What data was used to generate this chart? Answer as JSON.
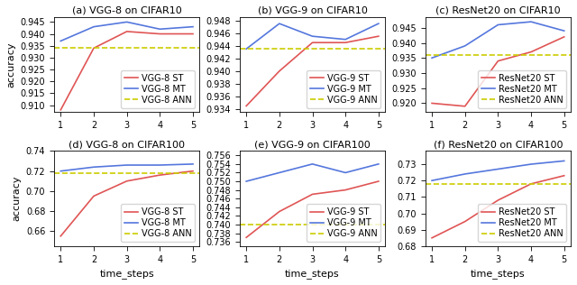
{
  "subplots": [
    {
      "title": "(a) VGG-8 on CIFAR10",
      "st": [
        0.908,
        0.934,
        0.941,
        0.94,
        0.94
      ],
      "mt": [
        0.937,
        0.943,
        0.945,
        0.942,
        0.943
      ],
      "ann": 0.934,
      "ylim": [
        0.907,
        0.947
      ],
      "yticks": [
        0.91,
        0.915,
        0.92,
        0.925,
        0.93,
        0.935,
        0.94,
        0.945
      ],
      "ylabel": "accuracy",
      "legend": [
        "VGG-8 ST",
        "VGG-8 MT",
        "VGG-8 ANN"
      ]
    },
    {
      "title": "(b) VGG-9 on CIFAR10",
      "st": [
        0.9345,
        0.94,
        0.9445,
        0.9445,
        0.9455
      ],
      "mt": [
        0.9435,
        0.9475,
        0.9455,
        0.945,
        0.9475
      ],
      "ann": 0.9435,
      "ylim": [
        0.9335,
        0.9485
      ],
      "yticks": [
        0.934,
        0.936,
        0.938,
        0.94,
        0.942,
        0.944,
        0.946,
        0.948
      ],
      "ylabel": "",
      "legend": [
        "VGG-9 ST",
        "VGG-9 MT",
        "VGG-9 ANN"
      ]
    },
    {
      "title": "(c) ResNet20 on CIFAR10",
      "st": [
        0.92,
        0.919,
        0.934,
        0.937,
        0.942
      ],
      "mt": [
        0.935,
        0.939,
        0.946,
        0.947,
        0.944
      ],
      "ann": 0.936,
      "ylim": [
        0.917,
        0.9485
      ],
      "yticks": [
        0.92,
        0.925,
        0.93,
        0.935,
        0.94,
        0.945
      ],
      "ylabel": "",
      "legend": [
        "ResNet20 ST",
        "ResNet20 MT",
        "ResNet20 ANN"
      ]
    },
    {
      "title": "(d) VGG-8 on CIFAR100",
      "st": [
        0.655,
        0.695,
        0.71,
        0.716,
        0.72
      ],
      "mt": [
        0.72,
        0.724,
        0.726,
        0.726,
        0.727
      ],
      "ann": 0.718,
      "ylim": [
        0.645,
        0.74
      ],
      "yticks": [
        0.66,
        0.68,
        0.7,
        0.72,
        0.74
      ],
      "ylabel": "accuracy",
      "legend": [
        "VGG-8 ST",
        "VGG-8 MT",
        "VGG-8 ANN"
      ]
    },
    {
      "title": "(e) VGG-9 on CIFAR100",
      "st": [
        0.737,
        0.743,
        0.747,
        0.748,
        0.75
      ],
      "mt": [
        0.75,
        0.752,
        0.754,
        0.752,
        0.754
      ],
      "ann": 0.74,
      "ylim": [
        0.735,
        0.757
      ],
      "yticks": [
        0.736,
        0.738,
        0.74,
        0.742,
        0.744,
        0.746,
        0.748,
        0.75,
        0.752,
        0.754,
        0.756
      ],
      "ylabel": "",
      "legend": [
        "VGG-9 ST",
        "VGG-9 MT",
        "VGG-9 ANN"
      ]
    },
    {
      "title": "(f) ResNet20 on CIFAR100",
      "st": [
        0.685,
        0.695,
        0.708,
        0.718,
        0.723
      ],
      "mt": [
        0.72,
        0.724,
        0.727,
        0.73,
        0.732
      ],
      "ann": 0.718,
      "ylim": [
        0.68,
        0.738
      ],
      "yticks": [
        0.68,
        0.69,
        0.7,
        0.71,
        0.72,
        0.73
      ],
      "ylabel": "",
      "legend": [
        "ResNet20 ST",
        "ResNet20 MT",
        "ResNet20 ANN"
      ]
    }
  ],
  "xlim": [
    0.8,
    5.2
  ],
  "xticks": [
    1,
    2,
    3,
    4,
    5
  ],
  "xlabel": "time_steps",
  "st_color": "#e05555",
  "mt_color": "#5577dd",
  "ann_color": "#cccc00",
  "linewidth": 1.2,
  "fontsize_title": 8,
  "fontsize_tick": 7,
  "fontsize_legend": 7,
  "fontsize_label": 8
}
